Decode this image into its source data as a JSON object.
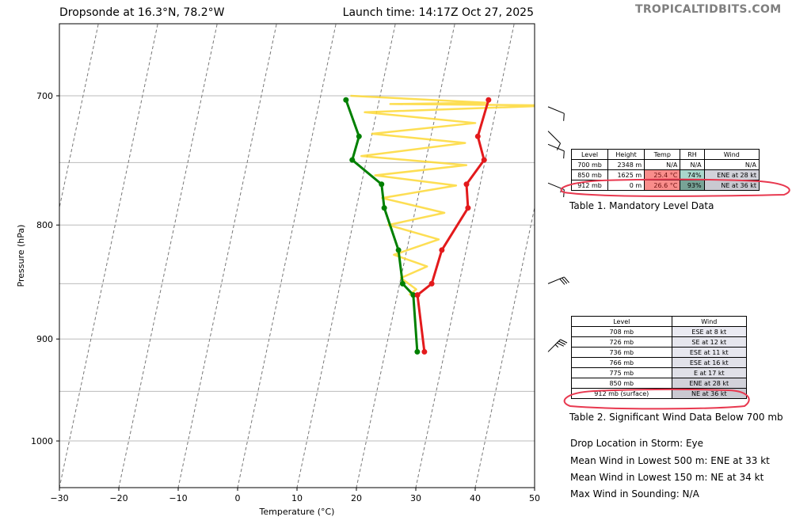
{
  "header": {
    "title_left": "Dropsonde at 16.3°N, 78.2°W",
    "title_right": "Launch time: 14:17Z Oct 27, 2025",
    "watermark": "TROPICALTIDBITS.COM"
  },
  "chart_data": {
    "type": "line",
    "subtype": "skew-T log-P",
    "xlabel": "Temperature (°C)",
    "ylabel": "Pressure (hPa)",
    "xlim": [
      -30,
      50
    ],
    "ylim": [
      1050,
      650
    ],
    "y_scale": "log",
    "xticks": [
      -30,
      -20,
      -10,
      0,
      10,
      20,
      30,
      40,
      50
    ],
    "yticks": [
      700,
      800,
      900,
      1000
    ],
    "gridlines_pressure": [
      700,
      750,
      800,
      850,
      900,
      950,
      1000
    ],
    "isotherms_dashed": [
      -70,
      -60,
      -50,
      -40,
      -30,
      -20,
      -10,
      0,
      10,
      20,
      30,
      40,
      50
    ],
    "series": [
      {
        "color": "#e31a1c",
        "points": [
          [
            28.4,
            703
          ],
          [
            27.9,
            730
          ],
          [
            29.8,
            748
          ],
          [
            27.7,
            767
          ],
          [
            28.8,
            786
          ],
          [
            25.9,
            821
          ],
          [
            25.4,
            850
          ],
          [
            23.4,
            860
          ],
          [
            26.6,
            912
          ]
        ]
      },
      {
        "color": "#008000",
        "points": [
          [
            4.4,
            703
          ],
          [
            7.9,
            730
          ],
          [
            7.6,
            748
          ],
          [
            13.4,
            767
          ],
          [
            14.7,
            786
          ],
          [
            18.6,
            821
          ],
          [
            20.5,
            850
          ],
          [
            22.7,
            860
          ],
          [
            25.4,
            912
          ]
        ]
      },
      {
        "color": "#fdd835",
        "points": [
          [
            5,
            700
          ],
          [
            28,
            705
          ],
          [
            12,
            706
          ],
          [
            40,
            707
          ],
          [
            8,
            712
          ],
          [
            27,
            720
          ],
          [
            10,
            728
          ],
          [
            26,
            735
          ],
          [
            9,
            745
          ],
          [
            27,
            752
          ],
          [
            12,
            760
          ],
          [
            26,
            768
          ],
          [
            14,
            778
          ],
          [
            25,
            790
          ],
          [
            16,
            800
          ],
          [
            25,
            812
          ],
          [
            18,
            825
          ],
          [
            24,
            835
          ],
          [
            20,
            845
          ],
          [
            23,
            855
          ],
          [
            22,
            860
          ]
        ]
      }
    ],
    "wind_barbs": [
      {
        "p": 708,
        "dir": "ESE",
        "kt": 8
      },
      {
        "p": 726,
        "dir": "SE",
        "kt": 12
      },
      {
        "p": 736,
        "dir": "ESE",
        "kt": 11
      },
      {
        "p": 766,
        "dir": "ESE",
        "kt": 16
      },
      {
        "p": 850,
        "dir": "ENE",
        "kt": 28
      },
      {
        "p": 912,
        "dir": "NE",
        "kt": 36
      }
    ]
  },
  "table1": {
    "headers": [
      "Level",
      "Height",
      "Temp",
      "RH",
      "Wind"
    ],
    "rows": [
      [
        "700 mb",
        "2348 m",
        "N/A",
        "N/A",
        "N/A"
      ],
      [
        "850 mb",
        "1625 m",
        "25.4 °C",
        "74%",
        "ENE at 28 kt"
      ],
      [
        "912 mb",
        "0 m",
        "26.6 °C",
        "93%",
        "NE at 36 kt"
      ]
    ],
    "caption": "Table 1. Mandatory Level Data"
  },
  "table2": {
    "headers": [
      "Level",
      "Wind"
    ],
    "rows": [
      [
        "708 mb",
        "ESE at 8 kt"
      ],
      [
        "726 mb",
        "SE at 12 kt"
      ],
      [
        "736 mb",
        "ESE at 11 kt"
      ],
      [
        "766 mb",
        "ESE at 16 kt"
      ],
      [
        "775 mb",
        "E at 17 kt"
      ],
      [
        "850 mb",
        "ENE at 28 kt"
      ],
      [
        "912 mb (surface)",
        "NE at 36 kt"
      ]
    ],
    "caption": "Table 2. Significant Wind Data Below 700 mb"
  },
  "info": [
    "Drop Location in Storm: Eye",
    "Mean Wind in Lowest 500 m:  ENE at 33 kt",
    "Mean Wind in Lowest 150 m:  NE at 34 kt",
    "Max Wind in Sounding:  N/A"
  ],
  "annotation_color": "#e8384f"
}
